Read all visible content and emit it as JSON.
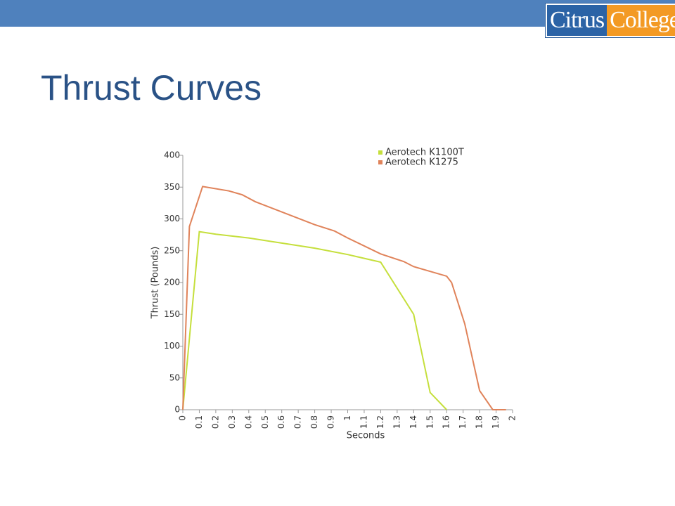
{
  "logo": {
    "left": "Citrus",
    "right": "College"
  },
  "chart_data": {
    "type": "line",
    "title": "Thrust Curves",
    "x_label": "Seconds",
    "y_label": "Thrust (Pounds)",
    "xlim": [
      0,
      2
    ],
    "xticks": [
      0,
      0.1,
      0.2,
      0.3,
      0.4,
      0.5,
      0.6,
      0.7,
      0.8,
      0.9,
      1,
      1.1,
      1.2,
      1.3,
      1.4,
      1.5,
      1.6,
      1.7,
      1.8,
      1.9,
      2
    ],
    "ylim": [
      0,
      400
    ],
    "yticks": [
      0,
      50,
      100,
      150,
      200,
      250,
      300,
      350,
      400
    ],
    "grid": false,
    "legend": "top-right",
    "series": [
      {
        "name": "Aerotech K1100T",
        "color": "#c5df3c",
        "x": [
          0,
          0.1,
          0.2,
          0.4,
          0.6,
          0.8,
          1.0,
          1.2,
          1.4,
          1.5,
          1.6
        ],
        "values": [
          0,
          280,
          276,
          270,
          262,
          254,
          244,
          232,
          150,
          27,
          0
        ]
      },
      {
        "name": "Aerotech K1275",
        "color": "#e0835a",
        "x": [
          0,
          0.04,
          0.12,
          0.28,
          0.36,
          0.44,
          0.6,
          0.8,
          0.92,
          1.0,
          1.2,
          1.34,
          1.4,
          1.6,
          1.63,
          1.71,
          1.8,
          1.88,
          1.96
        ],
        "values": [
          0,
          288,
          351,
          344,
          338,
          327,
          311,
          291,
          281,
          270,
          245,
          233,
          225,
          210,
          200,
          135,
          30,
          0,
          0
        ]
      }
    ]
  }
}
